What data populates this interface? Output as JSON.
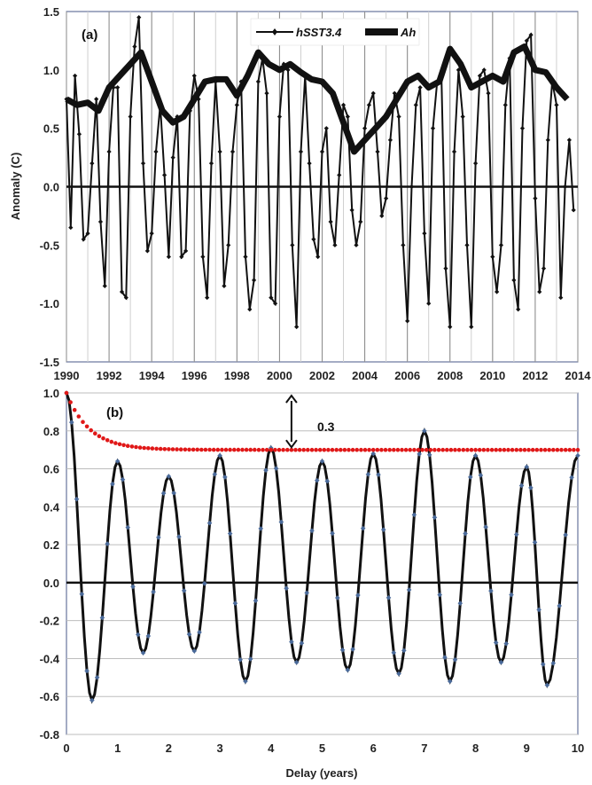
{
  "chart_data": [
    {
      "panel": "(a)",
      "type": "line",
      "ylabel": "Anomaly (C)",
      "xlabel": "",
      "xlim": [
        1990,
        2014
      ],
      "ylim": [
        -1.5,
        1.5
      ],
      "xticks": [
        "1990",
        "1992",
        "1994",
        "1996",
        "1998",
        "2000",
        "2002",
        "2004",
        "2006",
        "2008",
        "2010",
        "2012",
        "2014"
      ],
      "yticks": [
        "1.5",
        "1.0",
        "0.5",
        "0.0",
        "-0.5",
        "-1.0",
        "-1.5"
      ],
      "legend_position": "top-center",
      "series": [
        {
          "name": "hSST3.4",
          "style": "thin line with diamond markers",
          "x": [
            1990.0,
            1990.2,
            1990.4,
            1990.6,
            1990.8,
            1991.0,
            1991.2,
            1991.4,
            1991.6,
            1991.8,
            1992.0,
            1992.2,
            1992.4,
            1992.6,
            1992.8,
            1993.0,
            1993.2,
            1993.4,
            1993.6,
            1993.8,
            1994.0,
            1994.2,
            1994.4,
            1994.6,
            1994.8,
            1995.0,
            1995.2,
            1995.4,
            1995.6,
            1995.8,
            1996.0,
            1996.2,
            1996.4,
            1996.6,
            1996.8,
            1997.0,
            1997.2,
            1997.4,
            1997.6,
            1997.8,
            1998.0,
            1998.2,
            1998.4,
            1998.6,
            1998.8,
            1999.0,
            1999.2,
            1999.4,
            1999.6,
            1999.8,
            2000.0,
            2000.2,
            2000.4,
            2000.6,
            2000.8,
            2001.0,
            2001.2,
            2001.4,
            2001.6,
            2001.8,
            2002.0,
            2002.2,
            2002.4,
            2002.6,
            2002.8,
            2003.0,
            2003.2,
            2003.4,
            2003.6,
            2003.8,
            2004.0,
            2004.2,
            2004.4,
            2004.6,
            2004.8,
            2005.0,
            2005.2,
            2005.4,
            2005.6,
            2005.8,
            2006.0,
            2006.2,
            2006.4,
            2006.6,
            2006.8,
            2007.0,
            2007.2,
            2007.4,
            2007.6,
            2007.8,
            2008.0,
            2008.2,
            2008.4,
            2008.6,
            2008.8,
            2009.0,
            2009.2,
            2009.4,
            2009.6,
            2009.8,
            2010.0,
            2010.2,
            2010.4,
            2010.6,
            2010.8,
            2011.0,
            2011.2,
            2011.4,
            2011.6,
            2011.8,
            2012.0,
            2012.2,
            2012.4,
            2012.6,
            2012.8,
            2013.0,
            2013.2,
            2013.4,
            2013.6,
            2013.8
          ],
          "values": [
            0.75,
            -0.35,
            0.95,
            0.45,
            -0.45,
            -0.4,
            0.2,
            0.75,
            -0.3,
            -0.85,
            0.3,
            0.85,
            0.85,
            -0.9,
            -0.95,
            0.6,
            1.2,
            1.45,
            0.2,
            -0.55,
            -0.4,
            0.3,
            0.7,
            0.1,
            -0.6,
            0.25,
            0.6,
            -0.6,
            -0.55,
            0.65,
            0.95,
            0.75,
            -0.6,
            -0.95,
            0.2,
            0.9,
            0.3,
            -0.85,
            -0.5,
            0.3,
            0.7,
            0.9,
            -0.6,
            -1.05,
            -0.8,
            0.9,
            1.1,
            0.8,
            -0.95,
            -1.0,
            0.6,
            1.05,
            1.0,
            -0.5,
            -1.2,
            0.3,
            0.95,
            0.2,
            -0.45,
            -0.6,
            0.3,
            0.5,
            -0.3,
            -0.5,
            0.1,
            0.7,
            0.6,
            -0.2,
            -0.5,
            -0.3,
            0.5,
            0.7,
            0.8,
            0.3,
            -0.25,
            -0.1,
            0.4,
            0.8,
            0.6,
            -0.5,
            -1.15,
            0.0,
            0.7,
            0.85,
            -0.4,
            -1.0,
            0.5,
            0.9,
            0.95,
            -0.7,
            -1.2,
            0.3,
            1.0,
            0.6,
            -0.5,
            -1.2,
            0.2,
            0.95,
            1.0,
            0.8,
            -0.6,
            -0.9,
            -0.5,
            0.7,
            1.1,
            -0.8,
            -1.05,
            0.5,
            1.25,
            1.3,
            -0.1,
            -0.9,
            -0.7,
            0.4,
            0.9,
            0.7,
            -0.95,
            0.0,
            0.4,
            -0.2
          ]
        },
        {
          "name": "Ah",
          "style": "thick line",
          "x": [
            1990.0,
            1990.5,
            1991.0,
            1991.5,
            1992.0,
            1992.5,
            1993.0,
            1993.5,
            1994.0,
            1994.5,
            1995.0,
            1995.5,
            1996.0,
            1996.5,
            1997.0,
            1997.5,
            1998.0,
            1998.5,
            1999.0,
            1999.5,
            2000.0,
            2000.5,
            2001.0,
            2001.5,
            2002.0,
            2002.5,
            2003.0,
            2003.5,
            2004.0,
            2004.5,
            2005.0,
            2005.5,
            2006.0,
            2006.5,
            2007.0,
            2007.5,
            2008.0,
            2008.5,
            2009.0,
            2009.5,
            2010.0,
            2010.5,
            2011.0,
            2011.5,
            2012.0,
            2012.5,
            2013.0,
            2013.5
          ],
          "values": [
            0.75,
            0.7,
            0.72,
            0.65,
            0.85,
            0.95,
            1.05,
            1.15,
            0.9,
            0.65,
            0.55,
            0.6,
            0.75,
            0.9,
            0.92,
            0.92,
            0.78,
            0.95,
            1.15,
            1.05,
            1.0,
            1.05,
            0.98,
            0.92,
            0.9,
            0.8,
            0.55,
            0.3,
            0.4,
            0.5,
            0.6,
            0.75,
            0.9,
            0.95,
            0.85,
            0.9,
            1.18,
            1.05,
            0.85,
            0.9,
            0.95,
            0.9,
            1.15,
            1.2,
            1.0,
            0.98,
            0.85,
            0.75
          ]
        }
      ]
    },
    {
      "panel": "(b)",
      "type": "line",
      "xlabel": "Delay (years)",
      "ylabel": "",
      "xlim": [
        0,
        10
      ],
      "ylim": [
        -0.8,
        1.0
      ],
      "xticks": [
        "0",
        "1",
        "2",
        "3",
        "4",
        "5",
        "6",
        "7",
        "8",
        "9",
        "10"
      ],
      "yticks": [
        "1.0",
        "0.8",
        "0.6",
        "0.4",
        "0.2",
        "0.0",
        "-0.2",
        "-0.4",
        "-0.6",
        "-0.8"
      ],
      "annotation": "0.3",
      "arrow_between": [
        1.0,
        0.7
      ],
      "arrow_x": 4.4,
      "envelope": {
        "style": "red dotted",
        "start_value": 1.0,
        "asymptote": 0.7,
        "decay_years": 0.45
      },
      "correlation": {
        "style": "black line with diamond markers",
        "start": 1.0,
        "peaks_x": [
          1.0,
          2.0,
          3.0,
          4.0,
          5.0,
          6.0,
          7.0,
          8.0,
          9.0,
          10.0
        ],
        "peaks": [
          0.64,
          0.56,
          0.67,
          0.71,
          0.64,
          0.68,
          0.8,
          0.67,
          0.61,
          0.67
        ],
        "troughs_x": [
          0.5,
          1.5,
          2.5,
          3.5,
          4.5,
          5.5,
          6.5,
          7.5,
          8.5,
          9.4
        ],
        "troughs": [
          -0.62,
          -0.37,
          -0.36,
          -0.52,
          -0.42,
          -0.46,
          -0.48,
          -0.52,
          -0.42,
          -0.54
        ]
      }
    }
  ]
}
